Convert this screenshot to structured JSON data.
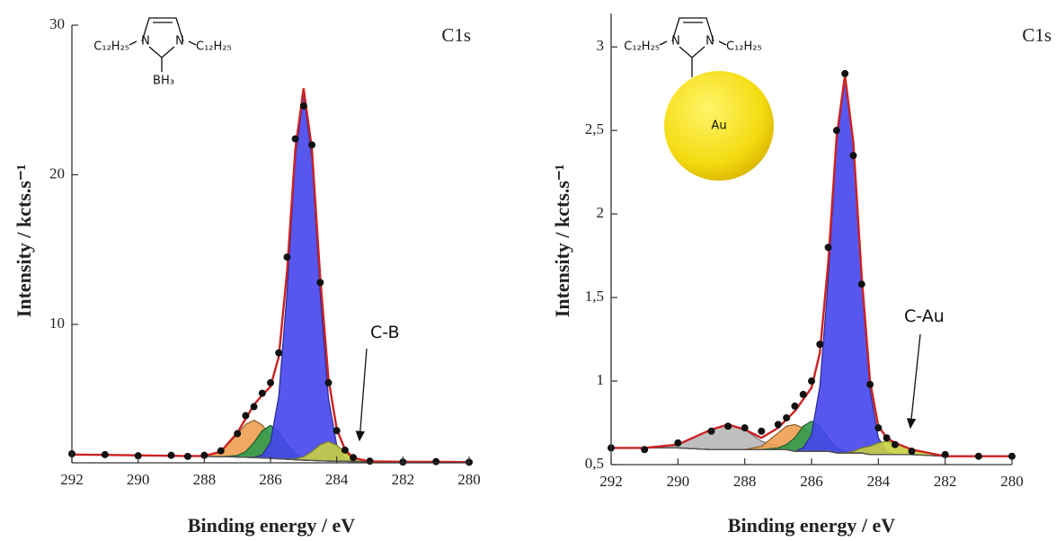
{
  "chart_data": [
    {
      "type": "xps",
      "title": "C1s",
      "xlabel": "Binding energy / eV",
      "ylabel": "Intensity / kcts.s⁻¹",
      "annotation": "C-B",
      "structure_labels": [
        "N",
        "N",
        "C₁₂H₂₅",
        "C₁₂H₂₅",
        "BH₃"
      ],
      "xlim": [
        292,
        280
      ],
      "xticks": [
        292,
        290,
        288,
        286,
        284,
        282,
        280
      ],
      "ylim": [
        0.75,
        30
      ],
      "yticks": [
        10,
        20,
        30
      ],
      "x": [
        292,
        291,
        290,
        289,
        288.5,
        288,
        287.5,
        287,
        286.75,
        286.5,
        286.25,
        286,
        285.75,
        285.5,
        285.25,
        285,
        284.75,
        284.5,
        284.25,
        284,
        283.75,
        283.5,
        283,
        282,
        281,
        280
      ],
      "series": [
        {
          "kind": "baseline",
          "color": "#555555",
          "values": [
            1.3,
            1.28,
            1.25,
            1.22,
            1.2,
            1.18,
            1.16,
            1.14,
            1.12,
            1.1,
            1.08,
            1.05,
            1.02,
            0.99,
            0.96,
            0.93,
            0.91,
            0.89,
            0.87,
            0.86,
            0.85,
            0.84,
            0.83,
            0.82,
            0.81,
            0.8
          ]
        },
        {
          "kind": "area",
          "color": "#f0a050",
          "values": [
            1.3,
            1.28,
            1.25,
            1.22,
            1.2,
            1.21,
            1.5,
            2.66,
            3.32,
            3.6,
            3.28,
            2.57,
            1.83,
            1.33,
            1.07,
            0.96,
            0.91,
            0.89,
            0.87,
            0.86,
            0.85,
            0.84,
            0.83,
            0.82,
            0.81,
            0.8
          ]
        },
        {
          "kind": "area",
          "color": "#2e9a4c",
          "values": [
            1.3,
            1.28,
            1.25,
            1.22,
            1.2,
            1.18,
            1.16,
            1.24,
            1.5,
            2.11,
            2.89,
            3.25,
            2.83,
            2.0,
            1.34,
            1.03,
            0.93,
            0.89,
            0.87,
            0.86,
            0.85,
            0.84,
            0.83,
            0.82,
            0.81,
            0.8
          ]
        },
        {
          "kind": "area",
          "color": "#4545ee",
          "values": [
            1.3,
            1.28,
            1.25,
            1.22,
            1.2,
            1.18,
            1.16,
            1.14,
            1.12,
            1.12,
            1.27,
            2.13,
            5.22,
            12.19,
            21.16,
            25.43,
            21.11,
            12.09,
            5.07,
            1.94,
            1.04,
            0.86,
            0.83,
            0.82,
            0.81,
            0.8
          ]
        },
        {
          "kind": "area",
          "color": "#c9d040",
          "values": [
            1.3,
            1.28,
            1.25,
            1.22,
            1.2,
            1.18,
            1.16,
            1.14,
            1.12,
            1.1,
            1.08,
            1.05,
            1.02,
            0.99,
            1.02,
            1.15,
            1.51,
            1.96,
            2.17,
            1.93,
            1.45,
            1.06,
            0.84,
            0.82,
            0.81,
            0.8
          ]
        },
        {
          "kind": "line",
          "color": "#cc2222",
          "values": [
            1.3,
            1.28,
            1.25,
            1.22,
            1.2,
            1.21,
            1.5,
            2.76,
            3.7,
            4.63,
            5.28,
            5.85,
            7.84,
            13.54,
            21.71,
            25.78,
            21.73,
            13.16,
            6.37,
            3.01,
            1.64,
            1.08,
            0.84,
            0.82,
            0.81,
            0.8
          ]
        },
        {
          "kind": "scatter",
          "color": "#111111",
          "values": [
            1.35,
            1.3,
            1.22,
            1.25,
            1.18,
            1.25,
            1.55,
            2.7,
            3.9,
            4.5,
            5.4,
            6.1,
            8.1,
            14.5,
            22.4,
            24.6,
            22.0,
            12.8,
            6.1,
            2.9,
            1.6,
            1.1,
            0.86,
            0.8,
            0.83,
            0.79
          ]
        }
      ]
    },
    {
      "type": "xps",
      "title": "C1s",
      "xlabel": "Binding energy / eV",
      "ylabel": "Intensity / kcts.s⁻¹",
      "annotation": "C-Au",
      "structure_labels": [
        "N",
        "N",
        "C₁₂H₂₅",
        "C₁₂H₂₅",
        "Au"
      ],
      "xlim": [
        292,
        280
      ],
      "xticks": [
        292,
        290,
        288,
        286,
        284,
        282,
        280
      ],
      "ylim": [
        0.5,
        3.2
      ],
      "yticks": [
        {
          "value": 0.5,
          "label": "0,5"
        },
        1,
        {
          "value": 1.5,
          "label": "1,5"
        },
        2,
        {
          "value": 2.5,
          "label": "2,5"
        },
        3
      ],
      "x": [
        292,
        291,
        290,
        289,
        288.5,
        288,
        287.5,
        287,
        286.75,
        286.5,
        286.25,
        286,
        285.75,
        285.5,
        285.25,
        285,
        284.75,
        284.5,
        284.25,
        284,
        283.75,
        283.5,
        283,
        282,
        281,
        280
      ],
      "series": [
        {
          "kind": "baseline",
          "color": "#555555",
          "values": [
            0.6,
            0.6,
            0.6,
            0.59,
            0.59,
            0.59,
            0.59,
            0.59,
            0.59,
            0.58,
            0.58,
            0.58,
            0.58,
            0.58,
            0.57,
            0.57,
            0.57,
            0.57,
            0.56,
            0.56,
            0.56,
            0.56,
            0.56,
            0.55,
            0.55,
            0.55
          ]
        },
        {
          "kind": "area",
          "color": "#b8b8b8",
          "values": [
            0.6,
            0.6,
            0.62,
            0.71,
            0.74,
            0.71,
            0.64,
            0.61,
            0.6,
            0.58,
            0.58,
            0.58,
            0.58,
            0.58,
            0.57,
            0.57,
            0.57,
            0.57,
            0.56,
            0.56,
            0.56,
            0.56,
            0.56,
            0.55,
            0.55,
            0.55
          ]
        },
        {
          "kind": "area",
          "color": "#f0a050",
          "values": [
            0.6,
            0.6,
            0.6,
            0.59,
            0.59,
            0.59,
            0.61,
            0.69,
            0.73,
            0.74,
            0.72,
            0.68,
            0.63,
            0.6,
            0.58,
            0.57,
            0.57,
            0.57,
            0.56,
            0.56,
            0.56,
            0.56,
            0.56,
            0.55,
            0.55,
            0.55
          ]
        },
        {
          "kind": "area",
          "color": "#2e9a4c",
          "values": [
            0.6,
            0.6,
            0.6,
            0.59,
            0.59,
            0.59,
            0.59,
            0.6,
            0.62,
            0.66,
            0.73,
            0.76,
            0.73,
            0.66,
            0.6,
            0.58,
            0.57,
            0.57,
            0.56,
            0.56,
            0.56,
            0.56,
            0.56,
            0.55,
            0.55,
            0.55
          ]
        },
        {
          "kind": "area",
          "color": "#4545ee",
          "values": [
            0.6,
            0.6,
            0.6,
            0.59,
            0.59,
            0.59,
            0.59,
            0.59,
            0.59,
            0.58,
            0.6,
            0.68,
            0.97,
            1.61,
            2.42,
            2.82,
            2.42,
            1.6,
            0.95,
            0.66,
            0.58,
            0.56,
            0.56,
            0.55,
            0.55,
            0.55
          ]
        },
        {
          "kind": "area",
          "color": "#c9d040",
          "values": [
            0.6,
            0.6,
            0.6,
            0.59,
            0.59,
            0.59,
            0.59,
            0.59,
            0.59,
            0.58,
            0.58,
            0.58,
            0.58,
            0.58,
            0.57,
            0.57,
            0.58,
            0.6,
            0.61,
            0.63,
            0.64,
            0.63,
            0.59,
            0.55,
            0.55,
            0.55
          ]
        },
        {
          "kind": "line",
          "color": "#cc2222",
          "values": [
            0.6,
            0.6,
            0.62,
            0.71,
            0.74,
            0.71,
            0.66,
            0.72,
            0.77,
            0.82,
            0.89,
            0.96,
            1.17,
            1.71,
            2.46,
            2.83,
            2.43,
            1.63,
            1.0,
            0.73,
            0.66,
            0.63,
            0.59,
            0.55,
            0.55,
            0.55
          ]
        },
        {
          "kind": "scatter",
          "color": "#111111",
          "values": [
            0.6,
            0.59,
            0.63,
            0.7,
            0.73,
            0.72,
            0.7,
            0.74,
            0.78,
            0.85,
            0.92,
            1.0,
            1.22,
            1.8,
            2.5,
            2.84,
            2.35,
            1.58,
            0.98,
            0.72,
            0.66,
            0.62,
            0.58,
            0.56,
            0.55,
            0.55
          ]
        }
      ]
    }
  ]
}
